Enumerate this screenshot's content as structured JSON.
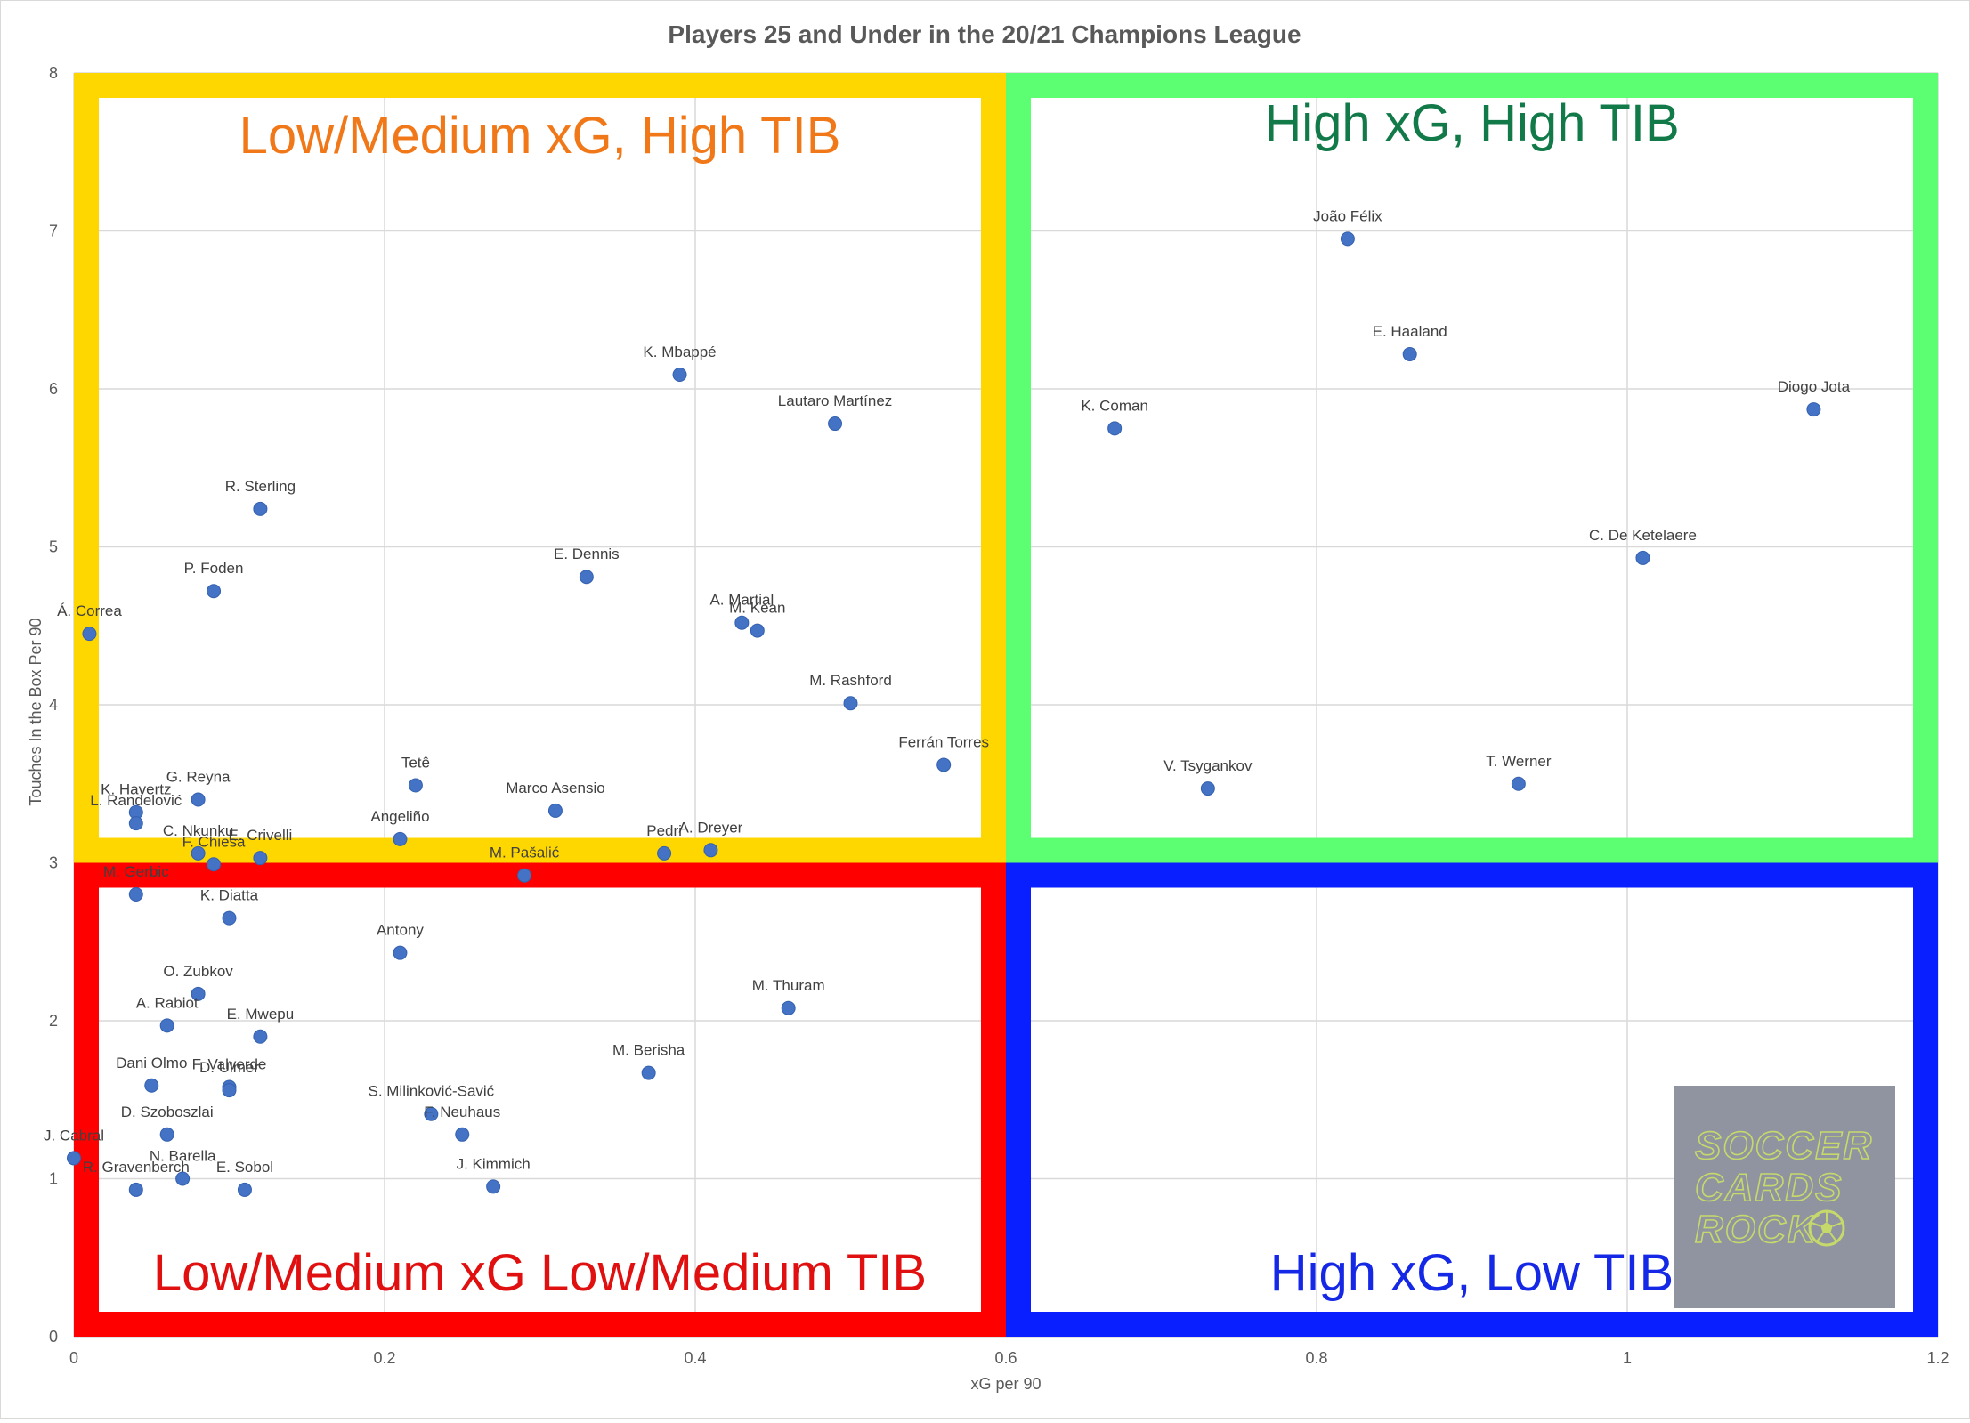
{
  "chart_data": {
    "type": "scatter",
    "title": "Players 25 and Under in the 20/21 Champions League",
    "xlabel": "xG per 90",
    "ylabel": "Touches In the Box Per 90",
    "xlim": [
      0,
      1.2
    ],
    "ylim": [
      0,
      8
    ],
    "x_ticks": [
      "0",
      "0.2",
      "0.4",
      "0.6",
      "0.8",
      "1",
      "1.2"
    ],
    "y_ticks": [
      "0",
      "1",
      "2",
      "3",
      "4",
      "5",
      "6",
      "7",
      "8"
    ],
    "grid": true,
    "point_color": "#4472c4",
    "quadrants": [
      {
        "label": "Low/Medium xG, High TIB",
        "border_color": "#ffd700",
        "text_color": "#f07818",
        "x_range": [
          0,
          0.6
        ],
        "y_range": [
          3,
          8
        ]
      },
      {
        "label": "High xG, High TIB",
        "border_color": "#5cff72",
        "text_color": "#117a48",
        "x_range": [
          0.6,
          1.2
        ],
        "y_range": [
          3,
          8
        ]
      },
      {
        "label": "Low/Medium xG Low/Medium TIB",
        "border_color": "#ff0000",
        "text_color": "#e01010",
        "x_range": [
          0,
          0.6
        ],
        "y_range": [
          0,
          3
        ]
      },
      {
        "label": "High xG, Low TIB",
        "border_color": "#0a1fff",
        "text_color": "#1428e6",
        "x_range": [
          0.6,
          1.2
        ],
        "y_range": [
          0,
          3
        ]
      }
    ],
    "points": [
      {
        "name": "João Félix",
        "x": 0.82,
        "y": 6.95
      },
      {
        "name": "E. Haaland",
        "x": 0.86,
        "y": 6.22
      },
      {
        "name": "Diogo Jota",
        "x": 1.12,
        "y": 5.87
      },
      {
        "name": "K. Coman",
        "x": 0.67,
        "y": 5.75
      },
      {
        "name": "C. De Ketelaere",
        "x": 1.01,
        "y": 4.93
      },
      {
        "name": "V. Tsygankov",
        "x": 0.73,
        "y": 3.47
      },
      {
        "name": "T. Werner",
        "x": 0.93,
        "y": 3.5
      },
      {
        "name": "K. Mbappé",
        "x": 0.39,
        "y": 6.09
      },
      {
        "name": "Lautaro Martínez",
        "x": 0.49,
        "y": 5.78
      },
      {
        "name": "R. Sterling",
        "x": 0.12,
        "y": 5.24
      },
      {
        "name": "E. Dennis",
        "x": 0.33,
        "y": 4.81
      },
      {
        "name": "P. Foden",
        "x": 0.09,
        "y": 4.72
      },
      {
        "name": "Á. Correa",
        "x": 0.01,
        "y": 4.45
      },
      {
        "name": "A. Martial",
        "x": 0.43,
        "y": 4.52
      },
      {
        "name": "M. Kean",
        "x": 0.44,
        "y": 4.47
      },
      {
        "name": "M. Rashford",
        "x": 0.5,
        "y": 4.01
      },
      {
        "name": "Ferrán Torres",
        "x": 0.56,
        "y": 3.62
      },
      {
        "name": "Tetê",
        "x": 0.22,
        "y": 3.49
      },
      {
        "name": "Marco Asensio",
        "x": 0.31,
        "y": 3.33
      },
      {
        "name": "G. Reyna",
        "x": 0.08,
        "y": 3.4
      },
      {
        "name": "K. Havertz",
        "x": 0.04,
        "y": 3.32
      },
      {
        "name": "L. Ranđelović",
        "x": 0.04,
        "y": 3.25
      },
      {
        "name": "Angeliño",
        "x": 0.21,
        "y": 3.15
      },
      {
        "name": "Pedri",
        "x": 0.38,
        "y": 3.06
      },
      {
        "name": "A. Dreyer",
        "x": 0.41,
        "y": 3.08
      },
      {
        "name": "C. Nkunku",
        "x": 0.08,
        "y": 3.06
      },
      {
        "name": "F. Chiesa",
        "x": 0.09,
        "y": 2.99
      },
      {
        "name": "E. Crivelli",
        "x": 0.12,
        "y": 3.03
      },
      {
        "name": "M. Pašalić",
        "x": 0.29,
        "y": 2.92
      },
      {
        "name": "M. Gerbic",
        "x": 0.04,
        "y": 2.8
      },
      {
        "name": "K. Diatta",
        "x": 0.1,
        "y": 2.65
      },
      {
        "name": "Antony",
        "x": 0.21,
        "y": 2.43
      },
      {
        "name": "O. Zubkov",
        "x": 0.08,
        "y": 2.17
      },
      {
        "name": "M. Thuram",
        "x": 0.46,
        "y": 2.08
      },
      {
        "name": "A. Rabiot",
        "x": 0.06,
        "y": 1.97
      },
      {
        "name": "E. Mwepu",
        "x": 0.12,
        "y": 1.9
      },
      {
        "name": "M. Berisha",
        "x": 0.37,
        "y": 1.67
      },
      {
        "name": "Dani Olmo",
        "x": 0.05,
        "y": 1.59
      },
      {
        "name": "F. Valverde",
        "x": 0.1,
        "y": 1.58
      },
      {
        "name": "D. Ulmer",
        "x": 0.1,
        "y": 1.56
      },
      {
        "name": "S. Milinković-Savić",
        "x": 0.23,
        "y": 1.41
      },
      {
        "name": "D. Szoboszlai",
        "x": 0.06,
        "y": 1.28
      },
      {
        "name": "F. Neuhaus",
        "x": 0.25,
        "y": 1.28
      },
      {
        "name": "J. Cabral",
        "x": 0.0,
        "y": 1.13
      },
      {
        "name": "N. Barella",
        "x": 0.07,
        "y": 1.0
      },
      {
        "name": "R. Gravenberch",
        "x": 0.04,
        "y": 0.93
      },
      {
        "name": "E. Sobol",
        "x": 0.11,
        "y": 0.93
      },
      {
        "name": "J. Kimmich",
        "x": 0.27,
        "y": 0.95
      }
    ]
  },
  "watermark": {
    "lines": [
      "SOCCER",
      "CARDS",
      "ROCK"
    ],
    "icon": "soccer-ball-icon",
    "background": "#9094a0",
    "text_color": "#c6d96b"
  }
}
